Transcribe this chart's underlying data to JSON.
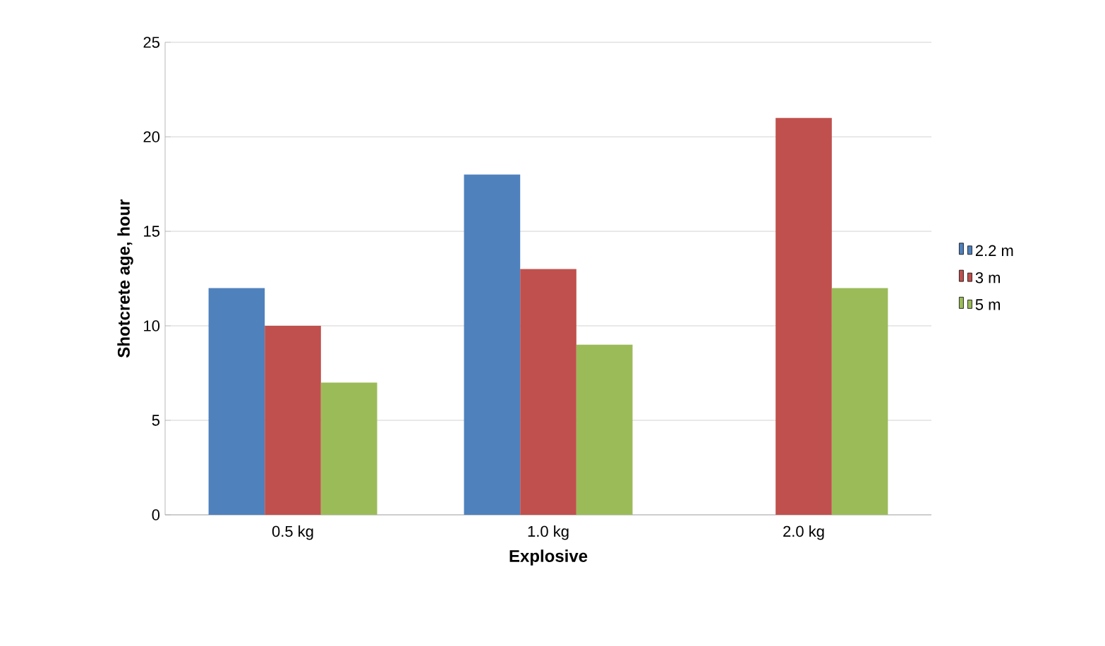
{
  "chart_data": {
    "type": "bar",
    "xlabel": "Explosive",
    "ylabel": "Shotcrete age, hour",
    "categories": [
      "0.5 kg",
      "1.0 kg",
      "2.0 kg"
    ],
    "series": [
      {
        "name": "2.2 m",
        "color": "#4f81bd",
        "values": [
          12,
          18,
          null
        ]
      },
      {
        "name": "3 m",
        "color": "#c0504d",
        "values": [
          10,
          13,
          21
        ]
      },
      {
        "name": "5 m",
        "color": "#9bbb59",
        "values": [
          7,
          9,
          12
        ]
      }
    ],
    "ylim": [
      0,
      25
    ],
    "yticks": [
      0,
      5,
      10,
      15,
      20,
      25
    ],
    "grid": "y",
    "legend": "right"
  }
}
